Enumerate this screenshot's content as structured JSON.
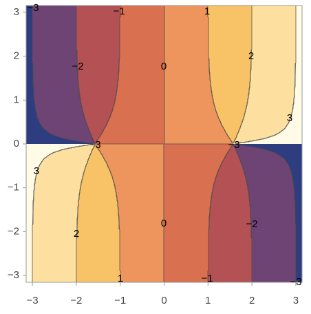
{
  "chart_data": {
    "type": "contour",
    "xlim": [
      -3.1416,
      3.1416
    ],
    "ylim": [
      -3.155,
      3.155
    ],
    "xticks": [
      {
        "value": -3,
        "label": "−3"
      },
      {
        "value": -2,
        "label": "−2"
      },
      {
        "value": -1,
        "label": "−1"
      },
      0,
      1,
      2,
      3
    ],
    "yticks": [
      {
        "value": -3,
        "label": "−3"
      },
      {
        "value": -2,
        "label": "−2"
      },
      {
        "value": -1,
        "label": "−1"
      },
      0,
      1,
      2,
      3
    ],
    "levels": [
      {
        "value": -3,
        "label": "−3"
      },
      {
        "value": -2,
        "label": "−2"
      },
      {
        "value": -1,
        "label": "−1"
      },
      0,
      1,
      2,
      3
    ],
    "colors": [
      "#2e3d80",
      "#6e4474",
      "#b35155",
      "#d9704f",
      "#ee955e",
      "#f8c266",
      "#fde0a0",
      "#fffbe6"
    ]
  }
}
